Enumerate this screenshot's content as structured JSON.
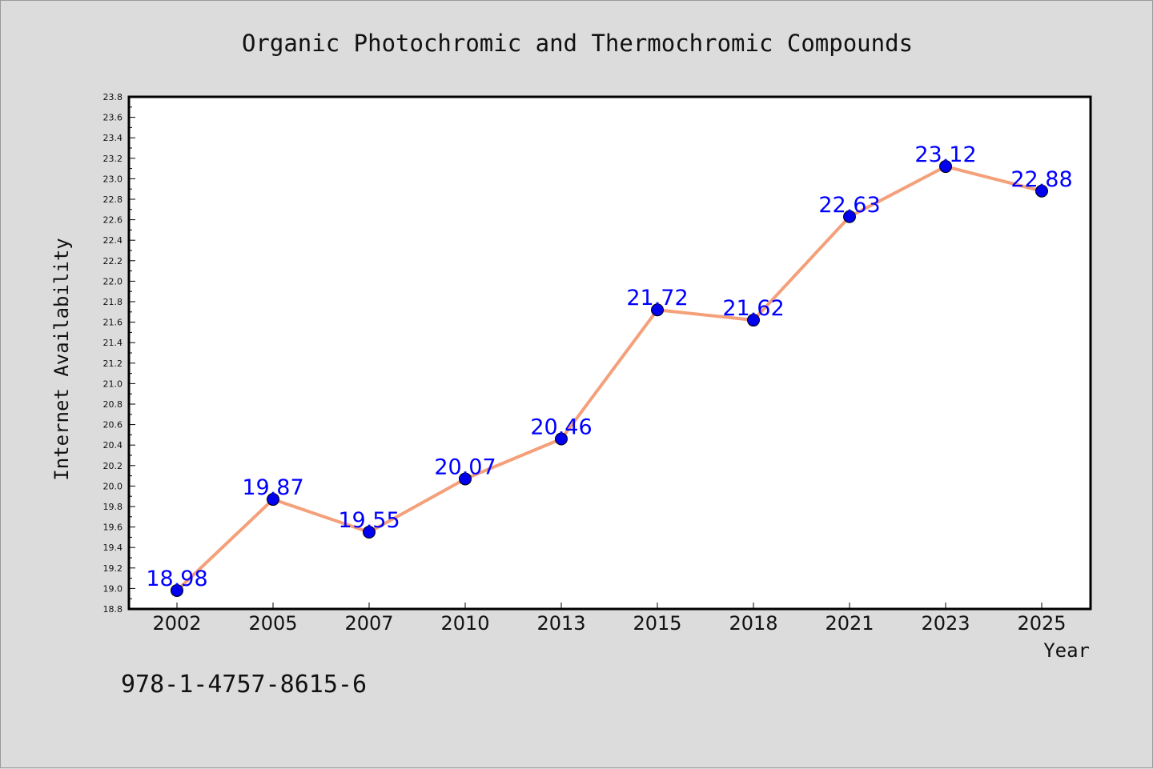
{
  "chart_data": {
    "type": "line",
    "title": "Organic Photochromic and Thermochromic Compounds",
    "xlabel": "Year",
    "ylabel": "Internet Availability",
    "categories": [
      "2002",
      "2005",
      "2007",
      "2010",
      "2013",
      "2015",
      "2018",
      "2021",
      "2023",
      "2025"
    ],
    "series": [
      {
        "values": [
          18.98,
          19.87,
          19.55,
          20.07,
          20.46,
          21.72,
          21.62,
          22.63,
          23.12,
          22.88
        ],
        "labels": [
          "18.98",
          "19.87",
          "19.55",
          "20.07",
          "20.46",
          "21.72",
          "21.62",
          "22.63",
          "23.12",
          "22.88"
        ],
        "line_color": "#f4a07a",
        "marker_color": "#0000ee"
      }
    ],
    "ylim": [
      18.8,
      23.8
    ],
    "yticks": [
      "18.8",
      "19.0",
      "19.2",
      "19.4",
      "19.6",
      "19.8",
      "20.0",
      "20.2",
      "20.4",
      "20.6",
      "20.8",
      "21.0",
      "21.2",
      "21.4",
      "21.6",
      "21.8",
      "22.0",
      "22.2",
      "22.4",
      "22.6",
      "22.8",
      "23.0",
      "23.2",
      "23.4",
      "23.6",
      "23.8"
    ],
    "grid": false,
    "legend": "none"
  },
  "footer": {
    "isbn": "978-1-4757-8615-6"
  }
}
